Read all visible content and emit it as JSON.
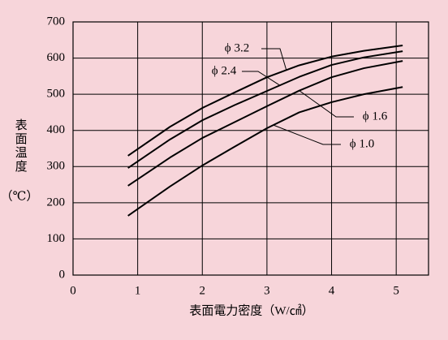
{
  "chart_data": {
    "type": "line",
    "y_label": "表面温度",
    "y_unit": "（℃）",
    "x_label": "表面電力密度（W/㎠）",
    "x": [
      0.85,
      1.5,
      2,
      2.5,
      3,
      3.5,
      4,
      4.5,
      5.1
    ],
    "series": [
      {
        "name": "ϕ 3.2",
        "color": "#000000",
        "values": [
          330,
          410,
          462,
          505,
          547,
          580,
          604,
          620,
          635
        ]
      },
      {
        "name": "ϕ 2.4",
        "color": "#000000",
        "values": [
          296,
          375,
          428,
          470,
          509,
          548,
          581,
          602,
          619
        ]
      },
      {
        "name": "ϕ 1.6",
        "color": "#000000",
        "values": [
          247,
          325,
          379,
          423,
          467,
          510,
          547,
          572,
          592
        ]
      },
      {
        "name": "ϕ 1.0",
        "color": "#000000",
        "values": [
          164,
          245,
          303,
          355,
          406,
          450,
          478,
          500,
          520
        ]
      }
    ],
    "xlim": [
      0,
      5.5
    ],
    "xticks": [
      0,
      1,
      2,
      3,
      4,
      5
    ],
    "ylim": [
      0,
      700
    ],
    "yticks": [
      0,
      100,
      200,
      300,
      400,
      500,
      600,
      700
    ],
    "grid": true
  }
}
